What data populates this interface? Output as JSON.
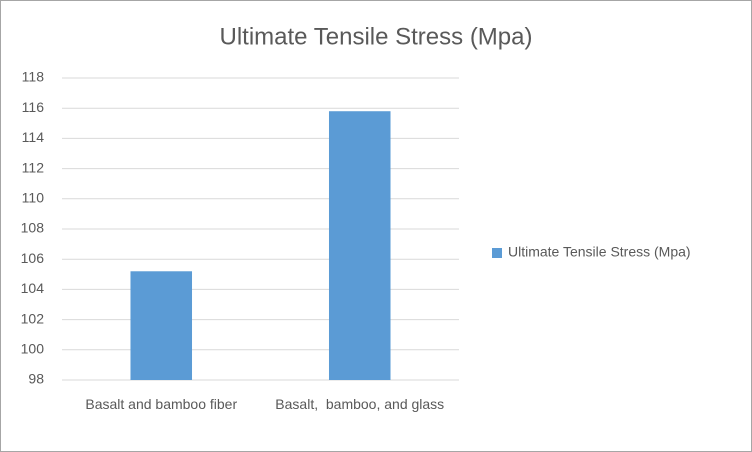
{
  "chart_data": {
    "type": "bar",
    "title": "Ultimate Tensile Stress (Mpa)",
    "categories": [
      "Basalt and bamboo fiber",
      "Basalt,  bamboo, and glass"
    ],
    "series": [
      {
        "name": "Ultimate Tensile Stress (Mpa)",
        "color": "#5b9bd5",
        "values": [
          105.2,
          115.8
        ]
      }
    ],
    "ylim": [
      98,
      118
    ],
    "yticks": [
      98,
      100,
      102,
      104,
      106,
      108,
      110,
      112,
      114,
      116,
      118
    ],
    "grid": true,
    "legend": "right"
  }
}
